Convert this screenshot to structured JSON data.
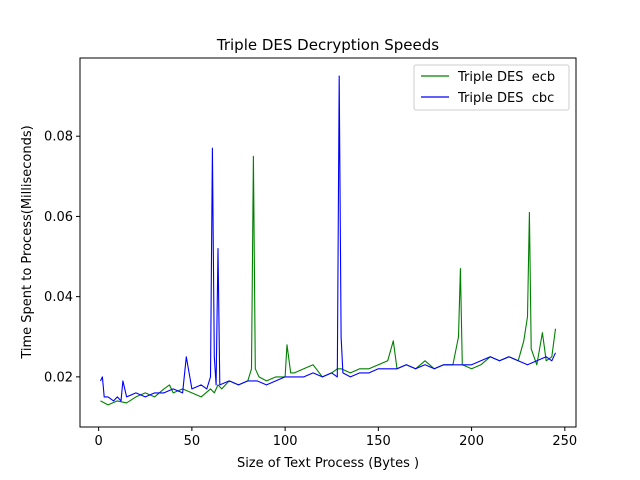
{
  "chart_data": {
    "type": "line",
    "title": "Triple DES Decryption Speeds",
    "xlabel": "Size of Text Process (Bytes )",
    "ylabel": "Time Spent to Process(Milliseconds)",
    "xlim": [
      -10,
      256
    ],
    "ylim": [
      0.0075,
      0.0995
    ],
    "xticks": [
      0,
      50,
      100,
      150,
      200,
      250
    ],
    "yticks": [
      0.02,
      0.04,
      0.06,
      0.08
    ],
    "xtick_labels": [
      "0",
      "50",
      "100",
      "150",
      "200",
      "250"
    ],
    "ytick_labels": [
      "0.02",
      "0.04",
      "0.06",
      "0.08"
    ],
    "grid": false,
    "legend_position": "top-right",
    "series": [
      {
        "name": "Triple DES  ecb",
        "color": "#008000",
        "x": [
          1,
          5,
          10,
          15,
          20,
          25,
          30,
          35,
          38,
          40,
          45,
          50,
          55,
          60,
          62,
          64,
          66,
          70,
          75,
          80,
          82,
          83,
          84,
          86,
          90,
          95,
          100,
          101,
          103,
          105,
          110,
          115,
          120,
          125,
          128,
          130,
          135,
          140,
          145,
          150,
          155,
          158,
          160,
          165,
          170,
          175,
          180,
          185,
          190,
          193,
          194,
          195,
          200,
          205,
          210,
          215,
          220,
          225,
          228,
          230,
          231,
          232,
          235,
          238,
          240,
          243,
          245
        ],
        "y": [
          0.014,
          0.013,
          0.014,
          0.0135,
          0.015,
          0.016,
          0.015,
          0.017,
          0.018,
          0.016,
          0.017,
          0.016,
          0.015,
          0.017,
          0.016,
          0.018,
          0.017,
          0.019,
          0.018,
          0.019,
          0.022,
          0.075,
          0.022,
          0.02,
          0.019,
          0.02,
          0.02,
          0.028,
          0.021,
          0.021,
          0.022,
          0.023,
          0.02,
          0.021,
          0.022,
          0.022,
          0.021,
          0.022,
          0.022,
          0.023,
          0.024,
          0.029,
          0.022,
          0.023,
          0.022,
          0.024,
          0.022,
          0.023,
          0.023,
          0.03,
          0.047,
          0.023,
          0.022,
          0.023,
          0.025,
          0.024,
          0.025,
          0.024,
          0.029,
          0.035,
          0.061,
          0.027,
          0.023,
          0.031,
          0.024,
          0.025,
          0.032
        ]
      },
      {
        "name": "Triple DES  cbc",
        "color": "#0000ff",
        "x": [
          1,
          2,
          3,
          5,
          8,
          10,
          12,
          13,
          15,
          20,
          25,
          30,
          35,
          40,
          45,
          47,
          50,
          55,
          58,
          60,
          61,
          62,
          63,
          64,
          65,
          70,
          75,
          80,
          85,
          90,
          95,
          100,
          105,
          110,
          115,
          120,
          125,
          128,
          129,
          130,
          131,
          135,
          140,
          145,
          150,
          155,
          160,
          165,
          170,
          175,
          180,
          185,
          190,
          195,
          200,
          205,
          210,
          215,
          220,
          225,
          230,
          235,
          240,
          243,
          245
        ],
        "y": [
          0.019,
          0.02,
          0.015,
          0.015,
          0.014,
          0.015,
          0.014,
          0.019,
          0.015,
          0.016,
          0.015,
          0.016,
          0.016,
          0.017,
          0.016,
          0.025,
          0.017,
          0.018,
          0.017,
          0.02,
          0.077,
          0.025,
          0.018,
          0.052,
          0.018,
          0.019,
          0.018,
          0.019,
          0.019,
          0.018,
          0.019,
          0.02,
          0.02,
          0.02,
          0.021,
          0.02,
          0.021,
          0.02,
          0.095,
          0.03,
          0.021,
          0.02,
          0.021,
          0.021,
          0.022,
          0.022,
          0.022,
          0.023,
          0.022,
          0.023,
          0.022,
          0.023,
          0.023,
          0.023,
          0.023,
          0.024,
          0.025,
          0.024,
          0.025,
          0.024,
          0.023,
          0.024,
          0.025,
          0.024,
          0.026
        ]
      }
    ]
  }
}
